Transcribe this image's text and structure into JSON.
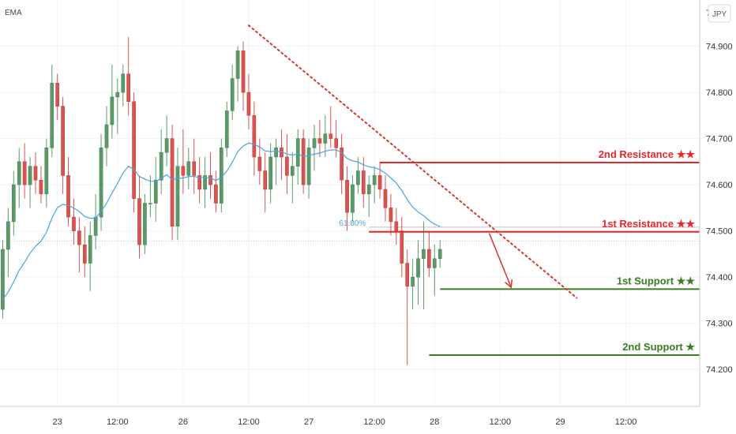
{
  "chart_data": {
    "type": "candlestick",
    "indicator_label": "EMA",
    "currency": "JPY",
    "y_ticks": [
      "74.200",
      "74.300",
      "74.400",
      "74.500",
      "74.600",
      "74.700",
      "74.800",
      "74.900"
    ],
    "y_ticks_top_partial": "7",
    "y_tick_values": [
      74.2,
      74.3,
      74.4,
      74.5,
      74.6,
      74.7,
      74.8,
      74.9
    ],
    "ylim": [
      74.12,
      75.0
    ],
    "x_ticks": [
      {
        "label": "23",
        "index": 10
      },
      {
        "label": "12:00",
        "index": 21
      },
      {
        "label": "26",
        "index": 33
      },
      {
        "label": "12:00",
        "index": 45
      },
      {
        "label": "27",
        "index": 56
      },
      {
        "label": "12:00",
        "index": 68
      },
      {
        "label": "28",
        "index": 79
      },
      {
        "label": "12:00",
        "index": 91
      },
      {
        "label": "29",
        "index": 102
      },
      {
        "label": "12:00",
        "index": 114
      }
    ],
    "x_count": 128,
    "candles": [
      [
        74.33,
        74.48,
        74.31,
        74.46
      ],
      [
        74.46,
        74.55,
        74.4,
        74.52
      ],
      [
        74.52,
        74.63,
        74.49,
        74.6
      ],
      [
        74.6,
        74.68,
        74.55,
        74.65
      ],
      [
        74.65,
        74.69,
        74.57,
        74.6
      ],
      [
        74.6,
        74.66,
        74.55,
        74.64
      ],
      [
        74.64,
        74.67,
        74.58,
        74.61
      ],
      [
        74.61,
        74.64,
        74.56,
        74.58
      ],
      [
        74.58,
        74.7,
        74.55,
        74.68
      ],
      [
        74.68,
        74.86,
        74.66,
        74.82
      ],
      [
        74.82,
        74.84,
        74.74,
        74.77
      ],
      [
        74.77,
        74.79,
        74.58,
        74.62
      ],
      [
        74.62,
        74.66,
        74.51,
        74.53
      ],
      [
        74.53,
        74.57,
        74.47,
        74.5
      ],
      [
        74.5,
        74.53,
        74.41,
        74.47
      ],
      [
        74.47,
        74.51,
        74.4,
        74.43
      ],
      [
        74.43,
        74.52,
        74.37,
        74.49
      ],
      [
        74.49,
        74.58,
        74.46,
        74.53
      ],
      [
        74.53,
        74.71,
        74.5,
        74.68
      ],
      [
        74.68,
        74.77,
        74.64,
        74.73
      ],
      [
        74.73,
        74.86,
        74.7,
        74.79
      ],
      [
        74.79,
        74.83,
        74.71,
        74.8
      ],
      [
        74.8,
        74.86,
        74.77,
        74.84
      ],
      [
        74.84,
        74.92,
        74.75,
        74.78
      ],
      [
        74.78,
        74.8,
        74.54,
        74.57
      ],
      [
        74.57,
        74.62,
        74.44,
        74.47
      ],
      [
        74.47,
        74.58,
        74.45,
        74.56
      ],
      [
        74.56,
        74.62,
        74.53,
        74.56
      ],
      [
        74.56,
        74.66,
        74.52,
        74.61
      ],
      [
        74.61,
        74.72,
        74.58,
        74.67
      ],
      [
        74.67,
        74.75,
        74.64,
        74.7
      ],
      [
        74.7,
        74.73,
        74.48,
        74.51
      ],
      [
        74.51,
        74.68,
        74.48,
        74.64
      ],
      [
        74.64,
        74.72,
        74.58,
        74.62
      ],
      [
        74.62,
        74.68,
        74.59,
        74.65
      ],
      [
        74.65,
        74.7,
        74.58,
        74.62
      ],
      [
        74.62,
        74.66,
        74.56,
        74.59
      ],
      [
        74.59,
        74.66,
        74.55,
        74.62
      ],
      [
        74.62,
        74.67,
        74.57,
        74.6
      ],
      [
        74.6,
        74.63,
        74.54,
        74.56
      ],
      [
        74.56,
        74.7,
        74.54,
        74.68
      ],
      [
        74.68,
        74.78,
        74.66,
        74.76
      ],
      [
        74.76,
        74.86,
        74.74,
        74.83
      ],
      [
        74.83,
        74.9,
        74.78,
        74.89
      ],
      [
        74.89,
        74.91,
        74.76,
        74.8
      ],
      [
        74.8,
        74.84,
        74.72,
        74.75
      ],
      [
        74.75,
        74.78,
        74.62,
        74.66
      ],
      [
        74.66,
        74.7,
        74.6,
        74.63
      ],
      [
        74.63,
        74.67,
        74.54,
        74.59
      ],
      [
        74.59,
        74.69,
        74.56,
        74.66
      ],
      [
        74.66,
        74.7,
        74.6,
        74.68
      ],
      [
        74.68,
        74.72,
        74.61,
        74.66
      ],
      [
        74.66,
        74.71,
        74.58,
        74.62
      ],
      [
        74.62,
        74.67,
        74.56,
        74.64
      ],
      [
        74.64,
        74.72,
        74.6,
        74.7
      ],
      [
        74.7,
        74.72,
        74.58,
        74.6
      ],
      [
        74.6,
        74.7,
        74.57,
        74.68
      ],
      [
        74.68,
        74.73,
        74.63,
        74.7
      ],
      [
        74.7,
        74.74,
        74.66,
        74.69
      ],
      [
        74.69,
        74.75,
        74.66,
        74.71
      ],
      [
        74.71,
        74.77,
        74.68,
        74.7
      ],
      [
        74.7,
        74.74,
        74.66,
        74.68
      ],
      [
        74.68,
        74.71,
        74.58,
        74.61
      ],
      [
        74.61,
        74.64,
        74.5,
        74.54
      ],
      [
        74.54,
        74.62,
        74.52,
        74.6
      ],
      [
        74.6,
        74.66,
        74.58,
        74.63
      ],
      [
        74.63,
        74.66,
        74.55,
        74.58
      ],
      [
        74.58,
        74.62,
        74.53,
        74.6
      ],
      [
        74.6,
        74.64,
        74.56,
        74.62
      ],
      [
        74.62,
        74.65,
        74.57,
        74.59
      ],
      [
        74.59,
        74.62,
        74.52,
        74.55
      ],
      [
        74.55,
        74.58,
        74.49,
        74.52
      ],
      [
        74.52,
        74.55,
        74.47,
        74.5
      ],
      [
        74.5,
        74.53,
        74.4,
        74.43
      ],
      [
        74.43,
        74.46,
        74.21,
        74.38
      ],
      [
        74.38,
        74.44,
        74.33,
        74.4
      ],
      [
        74.4,
        74.48,
        74.34,
        74.44
      ],
      [
        74.44,
        74.52,
        74.33,
        74.46
      ],
      [
        74.46,
        74.5,
        74.4,
        74.42
      ],
      [
        74.42,
        74.47,
        74.36,
        74.44
      ],
      [
        74.44,
        74.48,
        74.42,
        74.46
      ]
    ],
    "ema_label": "EMA",
    "fib_label": "61.80%",
    "fib_value": 74.508,
    "current_price_line": 74.478,
    "trendline": {
      "start_index": 45,
      "start_value": 74.945,
      "end_index": 105,
      "end_value": 74.355
    },
    "arrow": {
      "start_index": 89,
      "start_value": 74.495,
      "end_index": 93,
      "end_value": 74.378
    },
    "levels": [
      {
        "name": "2nd Resistance",
        "stars": "★★",
        "value": "74.648",
        "value_num": 74.648,
        "start_index": 69,
        "kind": "resistance"
      },
      {
        "name": "1st Resistance",
        "stars": "★★",
        "value": "74.498",
        "value_num": 74.498,
        "start_index": 67,
        "kind": "resistance"
      },
      {
        "name": "1st Support",
        "stars": "★★",
        "value": "74.374",
        "value_num": 74.374,
        "start_index": 80,
        "kind": "support"
      },
      {
        "name": "2nd Support",
        "stars": "★",
        "value": "74.231",
        "value_num": 74.231,
        "start_index": 78,
        "kind": "support"
      }
    ],
    "colors": {
      "up": "#5b9a68",
      "down": "#d9534f",
      "ema": "#4aa3df",
      "resistance": "#e8262a",
      "support": "#3a7d23",
      "trend": "#d9332b",
      "grid": "#f0f3f6",
      "axis_text": "#333333"
    }
  },
  "icons": {
    "corner_button": "jpy-badge-icon"
  }
}
